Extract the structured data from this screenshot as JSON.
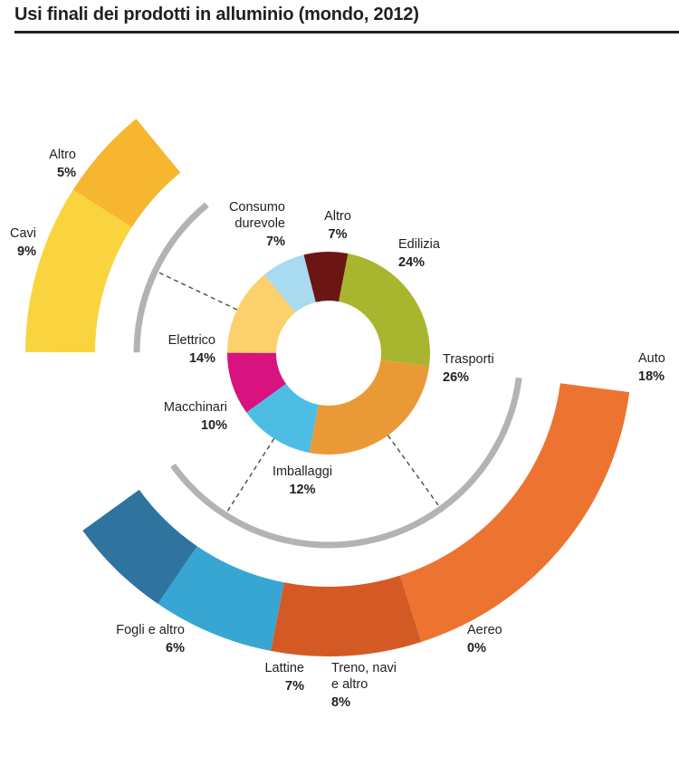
{
  "title": "Usi finali dei prodotti in alluminio (mondo, 2012)",
  "chart_data": {
    "type": "donut",
    "inner": [
      {
        "label": "Edilizia",
        "pct_label": "24%",
        "value": 24,
        "color": "#a8b52f"
      },
      {
        "label": "Trasporti",
        "pct_label": "26%",
        "value": 26,
        "color": "#e99a36"
      },
      {
        "label": "Imballaggi",
        "pct_label": "12%",
        "value": 12,
        "color": "#4dbde4"
      },
      {
        "label": "Macchinari",
        "pct_label": "10%",
        "value": 10,
        "color": "#d8127e"
      },
      {
        "label": "Elettrico",
        "pct_label": "14%",
        "value": 14,
        "color": "#fcd06a"
      },
      {
        "label": "Consumo durevole",
        "pct_label": "7%",
        "value": 7,
        "color": "#a8daf0"
      },
      {
        "label": "Altro",
        "pct_label": "7%",
        "value": 7,
        "color": "#6b1515"
      }
    ],
    "electrical_breakdown": [
      {
        "label": "Cavi",
        "pct_label": "9%",
        "value": 9,
        "color": "#f9d43f"
      },
      {
        "label": "Altro",
        "pct_label": "5%",
        "value": 5,
        "color": "#f7b630"
      }
    ],
    "transport_breakdown": [
      {
        "label": "Auto",
        "pct_label": "18%",
        "value": 18,
        "color": "#ec7430"
      },
      {
        "label": "Aereo",
        "pct_label": "0%",
        "value": 0,
        "color": "#ec7430"
      },
      {
        "label": "Treno, navi e altro",
        "pct_label": "8%",
        "value": 8,
        "color": "#d45a25"
      }
    ],
    "packaging_breakdown": [
      {
        "label": "Lattine",
        "pct_label": "7%",
        "value": 7,
        "color": "#38a6d2"
      },
      {
        "label": "Fogli e altro",
        "pct_label": "6%",
        "value": 6,
        "color": "#2f739f"
      }
    ]
  }
}
